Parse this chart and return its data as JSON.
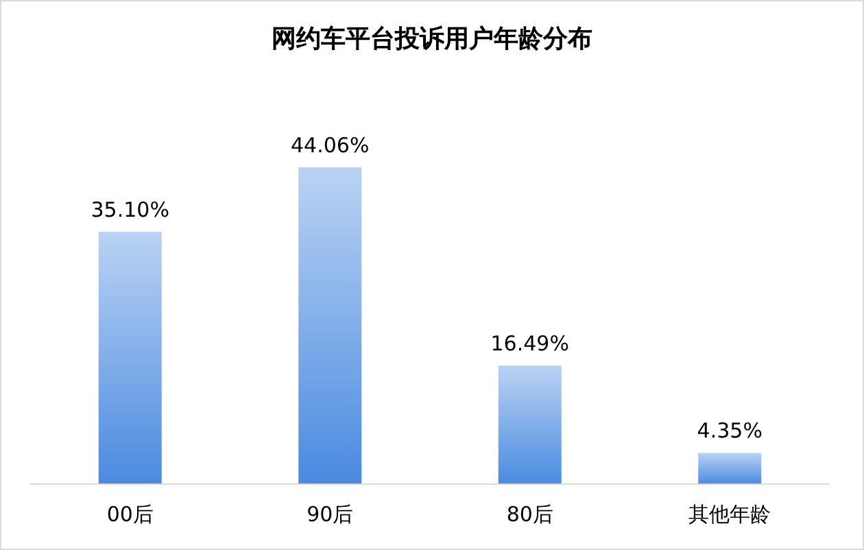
{
  "chart_data": {
    "type": "bar",
    "title": "网约车平台投诉用户年龄分布",
    "categories": [
      "00后",
      "90后",
      "80后",
      "其他年龄"
    ],
    "values": [
      35.1,
      44.06,
      16.49,
      4.35
    ],
    "color": "#4a8ae0",
    "value_labels": [
      "35.10%",
      "44.06%",
      "16.49%",
      "4.35%"
    ]
  }
}
